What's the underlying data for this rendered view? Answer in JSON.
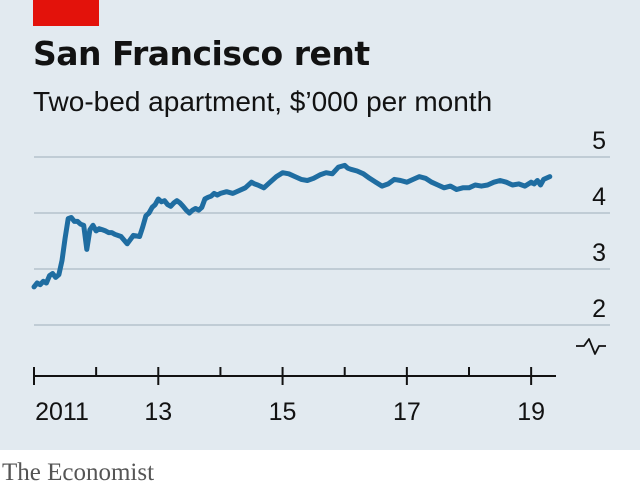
{
  "header": {
    "title": "San Francisco rent",
    "subtitle": "Two-bed apartment, $’000 per month"
  },
  "footer": {
    "source": "The Economist"
  },
  "colors": {
    "line": "#1f6da1",
    "accent": "#e3120b",
    "background": "#e2eaf0",
    "grid": "#b5c2cc"
  },
  "chart_data": {
    "type": "line",
    "title": "San Francisco rent",
    "subtitle": "Two-bed apartment, $’000 per month",
    "xlabel": "",
    "ylabel": "",
    "xlim": [
      2011,
      2019.4
    ],
    "ylim": [
      2,
      5
    ],
    "y_axis_break": true,
    "grid": true,
    "yticks": [
      2,
      3,
      4,
      5
    ],
    "ytick_labels": [
      "2",
      "3",
      "4",
      "5"
    ],
    "xticks_major": [
      2011,
      2013,
      2015,
      2017,
      2019
    ],
    "xtick_labels": [
      "2011",
      "13",
      "15",
      "17",
      "19"
    ],
    "xticks_minor": [
      2012,
      2014,
      2016,
      2018
    ],
    "series": [
      {
        "x": [
          2011.0,
          2011.05,
          2011.1,
          2011.15,
          2011.2,
          2011.25,
          2011.3,
          2011.35,
          2011.4,
          2011.45,
          2011.5,
          2011.55,
          2011.6,
          2011.65,
          2011.7,
          2011.75,
          2011.8,
          2011.85,
          2011.9,
          2011.95,
          2012.0,
          2012.05,
          2012.1,
          2012.15,
          2012.2,
          2012.25,
          2012.3,
          2012.4,
          2012.5,
          2012.6,
          2012.7,
          2012.75,
          2012.8,
          2012.85,
          2012.9,
          2012.95,
          2013.0,
          2013.05,
          2013.1,
          2013.15,
          2013.2,
          2013.25,
          2013.3,
          2013.35,
          2013.4,
          2013.45,
          2013.5,
          2013.55,
          2013.6,
          2013.65,
          2013.7,
          2013.75,
          2013.8,
          2013.85,
          2013.9,
          2013.95,
          2014.0,
          2014.1,
          2014.2,
          2014.3,
          2014.4,
          2014.5,
          2014.55,
          2014.6,
          2014.7,
          2014.8,
          2014.9,
          2015.0,
          2015.1,
          2015.2,
          2015.3,
          2015.4,
          2015.5,
          2015.6,
          2015.7,
          2015.8,
          2015.9,
          2016.0,
          2016.05,
          2016.1,
          2016.2,
          2016.3,
          2016.4,
          2016.5,
          2016.6,
          2016.7,
          2016.8,
          2016.9,
          2017.0,
          2017.1,
          2017.2,
          2017.3,
          2017.4,
          2017.5,
          2017.6,
          2017.7,
          2017.8,
          2017.9,
          2018.0,
          2018.1,
          2018.2,
          2018.3,
          2018.4,
          2018.5,
          2018.6,
          2018.7,
          2018.8,
          2018.9,
          2019.0,
          2019.05,
          2019.1,
          2019.15,
          2019.2,
          2019.3
        ],
        "values": [
          2.68,
          2.75,
          2.72,
          2.78,
          2.75,
          2.88,
          2.92,
          2.85,
          2.9,
          3.15,
          3.55,
          3.9,
          3.92,
          3.85,
          3.85,
          3.8,
          3.78,
          3.35,
          3.7,
          3.78,
          3.68,
          3.72,
          3.7,
          3.68,
          3.65,
          3.65,
          3.62,
          3.58,
          3.45,
          3.6,
          3.58,
          3.75,
          3.95,
          4.0,
          4.1,
          4.15,
          4.25,
          4.2,
          4.22,
          4.15,
          4.12,
          4.18,
          4.22,
          4.18,
          4.12,
          4.05,
          4.0,
          4.05,
          4.08,
          4.05,
          4.1,
          4.25,
          4.28,
          4.3,
          4.35,
          4.32,
          4.35,
          4.38,
          4.35,
          4.4,
          4.45,
          4.55,
          4.52,
          4.5,
          4.45,
          4.55,
          4.65,
          4.72,
          4.7,
          4.65,
          4.6,
          4.58,
          4.62,
          4.68,
          4.72,
          4.7,
          4.82,
          4.85,
          4.8,
          4.78,
          4.75,
          4.7,
          4.62,
          4.55,
          4.48,
          4.52,
          4.6,
          4.58,
          4.55,
          4.6,
          4.65,
          4.62,
          4.55,
          4.5,
          4.45,
          4.48,
          4.42,
          4.45,
          4.45,
          4.5,
          4.48,
          4.5,
          4.55,
          4.58,
          4.55,
          4.5,
          4.52,
          4.48,
          4.55,
          4.52,
          4.58,
          4.5,
          4.6,
          4.65
        ]
      }
    ]
  }
}
